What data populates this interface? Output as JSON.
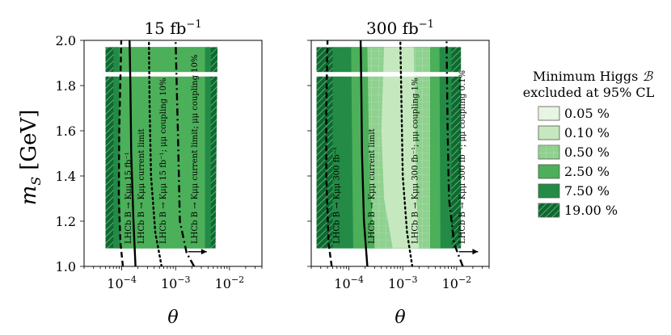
{
  "chart_data": [
    {
      "type": "heatmap",
      "title": "15 fb⁻¹",
      "title_main": "15 fb",
      "title_sup": "−1",
      "xlabel": "θ",
      "ylabel_main": "m",
      "ylabel_sub": "S",
      "ylabel_unit": "[GeV]",
      "xscale": "log",
      "xlim": [
        2e-05,
        0.04
      ],
      "ylim": [
        1.0,
        2.0
      ],
      "x_ticks": [
        {
          "value": 0.0001,
          "base": "10",
          "exp": "−4"
        },
        {
          "value": 0.001,
          "base": "10",
          "exp": "−3"
        },
        {
          "value": 0.01,
          "base": "10",
          "exp": "−2"
        }
      ],
      "y_ticks": [
        1.0,
        1.2,
        1.4,
        1.6,
        1.8,
        2.0
      ],
      "y_tick_labels": [
        "1.0",
        "1.2",
        "1.4",
        "1.6",
        "1.8",
        "2.0"
      ],
      "excluded_regions": [
        {
          "level": 5,
          "left": [
            [
              5e-05,
              1.08
            ],
            [
              5e-05,
              1.97
            ]
          ],
          "right": [
            [
              0.006,
              1.97
            ],
            [
              0.0055,
              1.08
            ]
          ]
        },
        {
          "level": 4,
          "left": [
            [
              7e-05,
              1.08
            ],
            [
              7e-05,
              1.97
            ]
          ],
          "right": [
            [
              0.0045,
              1.97
            ],
            [
              0.0045,
              1.08
            ]
          ]
        },
        {
          "level": 3,
          "left": [
            [
              9.5e-05,
              1.08
            ],
            [
              9e-05,
              1.97
            ]
          ],
          "right": [
            [
              0.0035,
              1.97
            ],
            [
              0.0035,
              1.08
            ]
          ]
        }
      ],
      "gap": [
        1.84,
        1.86
      ],
      "curves": [
        {
          "label": "LHCb B → Kμμ 15 fb⁻¹",
          "style": "dashed",
          "points": [
            [
              0.000105,
              1.0
            ],
            [
              9.5e-05,
              1.1
            ],
            [
              8.8e-05,
              1.3
            ],
            [
              9e-05,
              1.6
            ],
            [
              9.8e-05,
              2.0
            ]
          ]
        },
        {
          "label": "LHCb B → Kμμ current limit",
          "style": "solid",
          "points": [
            [
              0.00018,
              1.0
            ],
            [
              0.000165,
              1.2
            ],
            [
              0.00015,
              1.5
            ],
            [
              0.000145,
              1.8
            ],
            [
              0.00014,
              2.0
            ]
          ]
        },
        {
          "label": "LHCb B → Kμμ 15 fb⁻¹; μμ coupling 10%",
          "style": "dotted",
          "points": [
            [
              0.00055,
              1.0
            ],
            [
              0.00042,
              1.15
            ],
            [
              0.00035,
              1.4
            ],
            [
              0.00033,
              1.7
            ],
            [
              0.00032,
              2.0
            ]
          ]
        },
        {
          "label": "LHCb B → Kμμ current limit; μμ coupling 10%",
          "style": "dashdot",
          "points": [
            [
              0.0022,
              1.0
            ],
            [
              0.0016,
              1.06
            ],
            [
              0.0012,
              1.2
            ],
            [
              0.0011,
              1.6
            ],
            [
              0.001,
              2.0
            ]
          ]
        }
      ],
      "arrow": {
        "from": [
          0.0017,
          1.065
        ],
        "to": [
          0.0038,
          1.065
        ]
      }
    },
    {
      "type": "heatmap",
      "title": "300 fb⁻¹",
      "title_main": "300 fb",
      "title_sup": "−1",
      "xlabel": "θ",
      "xscale": "log",
      "xlim": [
        2e-05,
        0.04
      ],
      "ylim": [
        1.0,
        2.0
      ],
      "x_ticks": [
        {
          "value": 0.0001,
          "base": "10",
          "exp": "−4"
        },
        {
          "value": 0.001,
          "base": "10",
          "exp": "−3"
        },
        {
          "value": 0.01,
          "base": "10",
          "exp": "−2"
        }
      ],
      "excluded_regions": [
        {
          "level": 5,
          "left": [
            [
              2.5e-05,
              1.08
            ],
            [
              2.5e-05,
              1.97
            ]
          ],
          "right": [
            [
              0.012,
              1.97
            ],
            [
              0.012,
              1.08
            ]
          ]
        },
        {
          "level": 4,
          "left": [
            [
              5e-05,
              1.08
            ],
            [
              5e-05,
              1.97
            ]
          ],
          "right": [
            [
              0.008,
              1.97
            ],
            [
              0.008,
              1.08
            ]
          ]
        },
        {
          "level": 3,
          "left": [
            [
              0.00012,
              1.08
            ],
            [
              0.00011,
              1.97
            ]
          ],
          "right": [
            [
              0.0048,
              1.97
            ],
            [
              0.005,
              1.08
            ]
          ]
        },
        {
          "level": 2,
          "left": [
            [
              0.0003,
              1.08
            ],
            [
              0.00024,
              1.4
            ],
            [
              0.00022,
              1.97
            ]
          ],
          "right": [
            [
              0.0032,
              1.97
            ],
            [
              0.0032,
              1.08
            ]
          ]
        },
        {
          "level": 1,
          "left": [
            [
              0.00065,
              1.08
            ],
            [
              0.00045,
              1.3
            ],
            [
              0.0004,
              1.6
            ],
            [
              0.00045,
              1.97
            ]
          ],
          "right": [
            [
              0.0016,
              1.97
            ],
            [
              0.0017,
              1.6
            ],
            [
              0.0018,
              1.3
            ],
            [
              0.002,
              1.08
            ]
          ]
        }
      ],
      "gap": [
        1.84,
        1.86
      ],
      "curves": [
        {
          "label": "LHCb B → Kμμ 300 fb⁻¹",
          "style": "dashed",
          "points": [
            [
              4.8e-05,
              1.0
            ],
            [
              4.2e-05,
              1.1
            ],
            [
              3.8e-05,
              1.4
            ],
            [
              3.8e-05,
              1.7
            ],
            [
              4e-05,
              2.0
            ]
          ]
        },
        {
          "label": "LHCb B → Kμμ current limit",
          "style": "solid",
          "points": [
            [
              0.00022,
              1.0
            ],
            [
              0.00019,
              1.2
            ],
            [
              0.000175,
              1.5
            ],
            [
              0.00017,
              1.8
            ],
            [
              0.000165,
              2.0
            ]
          ]
        },
        {
          "label": "LHCb B → Kμμ 300 fb⁻¹; μμ coupling 1%",
          "style": "dotted",
          "points": [
            [
              0.0015,
              1.0
            ],
            [
              0.0012,
              1.15
            ],
            [
              0.001,
              1.4
            ],
            [
              0.00095,
              1.7
            ],
            [
              0.0009,
              2.0
            ]
          ]
        },
        {
          "label": "LHCb B → Kμμ 300 fb⁻¹; μμ coupling 0.1%",
          "style": "dashdot",
          "points": [
            [
              0.013,
              1.0
            ],
            [
              0.009,
              1.1
            ],
            [
              0.0072,
              1.3
            ],
            [
              0.0068,
              1.6
            ],
            [
              0.0065,
              2.0
            ]
          ]
        }
      ],
      "arrow": {
        "from": [
          0.011,
          1.065
        ],
        "to": [
          0.025,
          1.065
        ]
      }
    }
  ],
  "legend": {
    "title_line1": "Minimum Higgs",
    "title_symbol": "ℬ",
    "title_line2": "excluded at 95% CL",
    "placement": "right",
    "entries": [
      {
        "label": "0.05 %",
        "color": "#e6f4e1",
        "hatch": "grid"
      },
      {
        "label": "0.10 %",
        "color": "#c6e8bf",
        "hatch": "none"
      },
      {
        "label": "0.50 %",
        "color": "#8fd18f",
        "hatch": "grid"
      },
      {
        "label": "2.50 %",
        "color": "#4caf5a",
        "hatch": "none"
      },
      {
        "label": "7.50 %",
        "color": "#238b45",
        "hatch": "none"
      },
      {
        "label": "19.00 %",
        "color": "#0b6b2e",
        "hatch": "diag"
      }
    ]
  }
}
